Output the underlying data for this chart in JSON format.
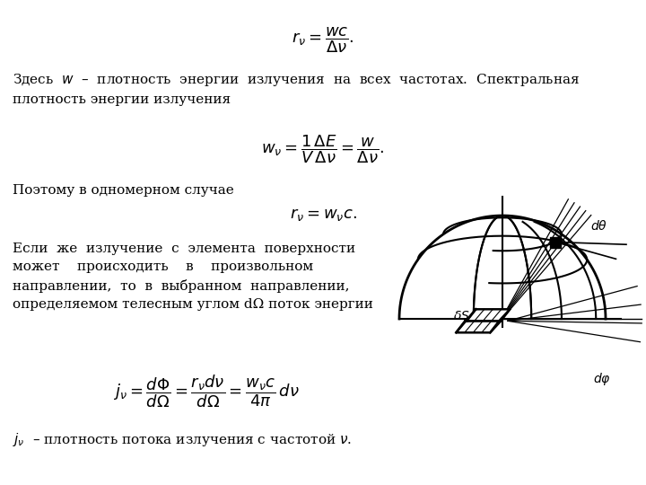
{
  "background_color": "#ffffff",
  "fig_width": 7.2,
  "fig_height": 5.4,
  "dpi": 100,
  "title_formula": "$r_\\nu = \\dfrac{wc}{\\Delta\\nu}.$",
  "text1": "Здесь  $w$  –  плотность  энергии  излучения  на  всех  частотах.  Спектральная\nплотность энергии излучения",
  "formula2": "$w_\\nu = \\dfrac{1}{V}\\dfrac{\\Delta E}{\\Delta\\nu} = \\dfrac{w}{\\Delta\\nu}.$",
  "text2": "Поэтому в одномерном случае",
  "formula3": "$r_\\nu = w_\\nu c.$",
  "text3": "Если  же  излучение  с  элемента  поверхности\nможет    происходить    в    произвольном\nнаправлении,  то  в  выбранном  направлении,\nопределяемом телесным углом dΩ поток энергии",
  "formula4": "$j_\\nu = \\dfrac{d\\Phi}{d\\Omega} = \\dfrac{r_\\nu d\\nu}{d\\Omega} = \\dfrac{w_\\nu c}{4\\pi}\\,d\\nu$",
  "text4": "$j_\\nu$  – плотность потока излучения с частотой $\\nu$.",
  "fontsize_text": 11,
  "fontsize_formula": 13
}
